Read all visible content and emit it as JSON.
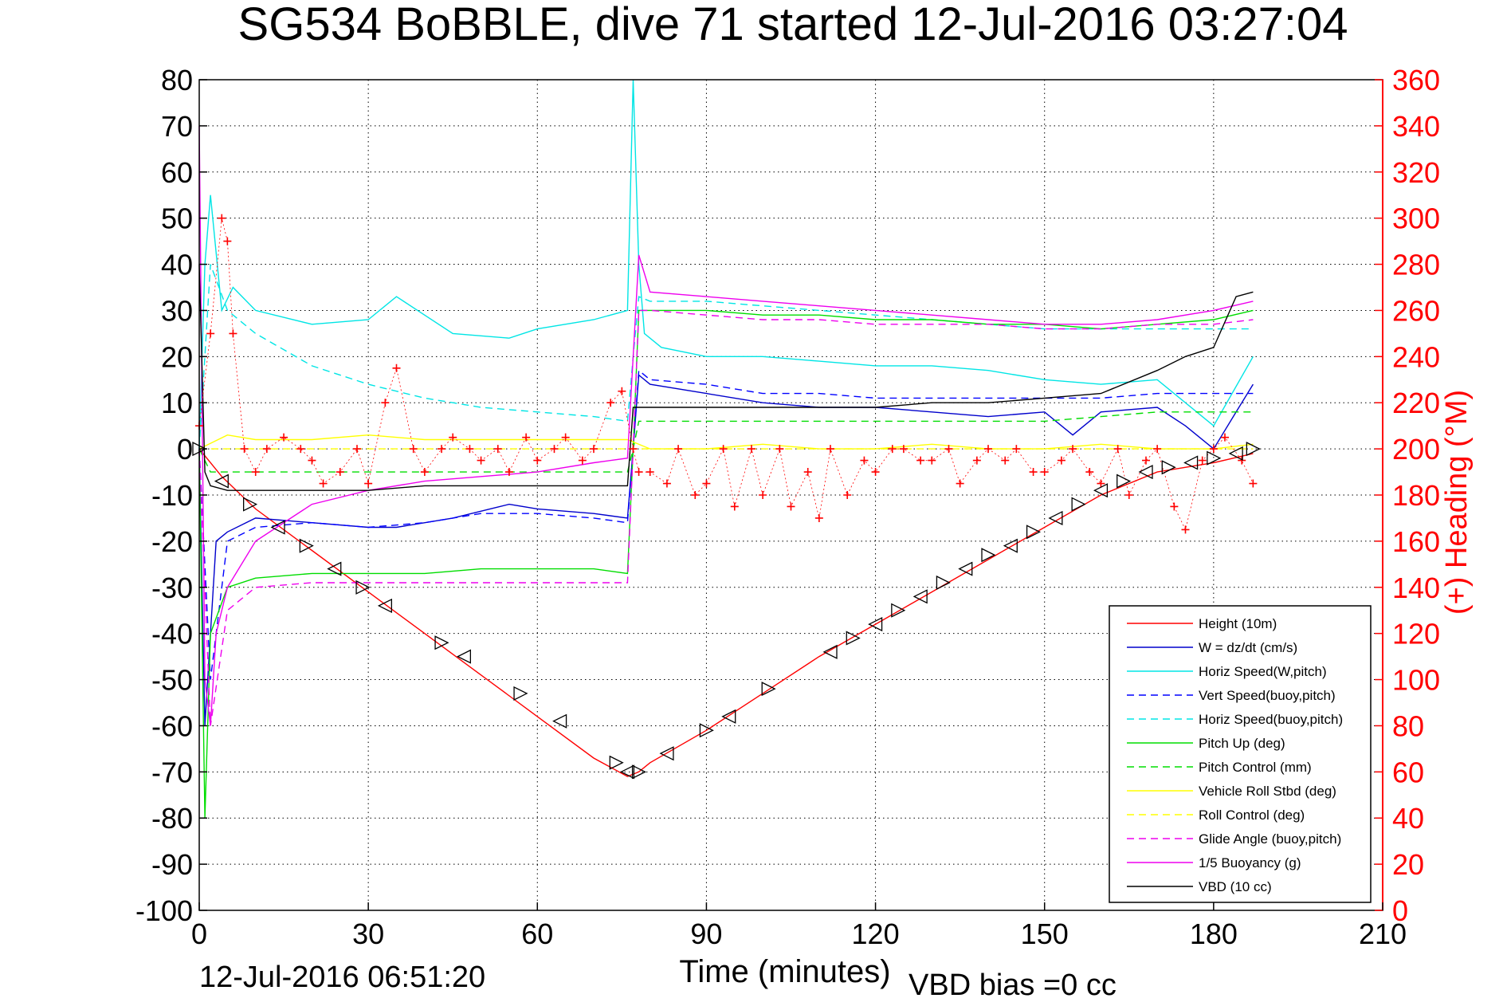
{
  "chart_data": {
    "type": "line",
    "title": "SG534 BoBBLE, dive 71 started 12-Jul-2016 03:27:04",
    "xlabel": "Time (minutes)",
    "ylabel": "",
    "y2label": "(+) Heading (°M)",
    "xlim": [
      0,
      210
    ],
    "ylim": [
      -100,
      80
    ],
    "y2lim": [
      0,
      360
    ],
    "xticks": [
      "0",
      "30",
      "60",
      "90",
      "120",
      "150",
      "180",
      "210"
    ],
    "yticks": [
      "80",
      "70",
      "60",
      "50",
      "40",
      "30",
      "20",
      "10",
      "0",
      "-10",
      "-20",
      "-30",
      "-40",
      "-50",
      "-60",
      "-70",
      "-80",
      "-90",
      "-100"
    ],
    "y2ticks": [
      "360",
      "340",
      "320",
      "300",
      "280",
      "260",
      "240",
      "220",
      "200",
      "180",
      "160",
      "140",
      "120",
      "100",
      "80",
      "60",
      "40",
      "20",
      "0"
    ],
    "grid": true,
    "legend_position": "bottom-right",
    "footer_date": "12-Jul-2016 06:51:20",
    "footer_bias": "VBD bias =0 cc",
    "colors": {
      "red": "#ff0000",
      "blue": "#0000cc",
      "cyan": "#00e5e5",
      "green": "#00dd00",
      "yellow": "#ffff00",
      "magenta": "#ee00ee",
      "black": "#000000",
      "axis_right": "#ff0000"
    },
    "series": [
      {
        "name": "Height (10m)",
        "color": "#ff0000",
        "dash": false,
        "x": [
          0,
          4,
          10,
          20,
          30,
          40,
          50,
          60,
          70,
          76,
          78,
          80,
          90,
          100,
          110,
          120,
          130,
          140,
          150,
          160,
          170,
          180,
          187
        ],
        "y": [
          0,
          -6,
          -13,
          -22,
          -31,
          -40,
          -49,
          -58,
          -67,
          -71,
          -70,
          -68,
          -61,
          -53,
          -45,
          -38,
          -31,
          -24,
          -17,
          -10,
          -5,
          -3,
          -1
        ]
      },
      {
        "name": "W = dz/dt (cm/s)",
        "color": "#0000cc",
        "dash": false,
        "x": [
          0,
          1,
          2,
          3,
          5,
          10,
          20,
          30,
          35,
          45,
          55,
          60,
          70,
          76,
          77,
          78,
          80,
          90,
          100,
          110,
          120,
          130,
          140,
          150,
          155,
          160,
          170,
          175,
          180,
          184,
          187
        ],
        "y": [
          0,
          -60,
          -40,
          -20,
          -18,
          -15,
          -16,
          -17,
          -17,
          -15,
          -12,
          -13,
          -14,
          -15,
          0,
          16,
          14,
          12,
          10,
          9,
          9,
          8,
          7,
          8,
          3,
          8,
          9,
          5,
          0,
          8,
          14
        ]
      },
      {
        "name": "Horiz Speed(W,pitch)",
        "color": "#00e5e5",
        "dash": false,
        "x": [
          0,
          1,
          2,
          4,
          6,
          10,
          20,
          30,
          35,
          45,
          55,
          60,
          70,
          76,
          77,
          78,
          79,
          82,
          90,
          100,
          110,
          120,
          130,
          140,
          150,
          160,
          170,
          180,
          187
        ],
        "y": [
          0,
          40,
          55,
          30,
          35,
          30,
          27,
          28,
          33,
          25,
          24,
          26,
          28,
          30,
          80,
          40,
          25,
          22,
          20,
          20,
          19,
          18,
          18,
          17,
          15,
          14,
          15,
          5,
          20
        ]
      },
      {
        "name": "Vert Speed(buoy,pitch)",
        "color": "#0000ff",
        "dash": true,
        "x": [
          0,
          2,
          5,
          10,
          20,
          30,
          40,
          50,
          60,
          70,
          76,
          77,
          78,
          80,
          90,
          100,
          110,
          120,
          130,
          140,
          150,
          160,
          170,
          180,
          187
        ],
        "y": [
          0,
          -50,
          -20,
          -17,
          -16,
          -17,
          -16,
          -14,
          -14,
          -15,
          -16,
          0,
          17,
          15,
          14,
          12,
          12,
          11,
          11,
          11,
          11,
          11,
          12,
          12,
          12
        ]
      },
      {
        "name": "Horiz Speed(buoy,pitch)",
        "color": "#00e5e5",
        "dash": true,
        "x": [
          0,
          2,
          5,
          10,
          20,
          30,
          40,
          50,
          60,
          70,
          76,
          77,
          78,
          80,
          90,
          100,
          110,
          120,
          130,
          140,
          150,
          160,
          170,
          180,
          187
        ],
        "y": [
          0,
          40,
          30,
          25,
          18,
          14,
          11,
          9,
          8,
          7,
          6,
          20,
          33,
          32,
          32,
          31,
          30,
          29,
          28,
          27,
          26,
          26,
          26,
          26,
          26
        ]
      },
      {
        "name": "Pitch Up (deg)",
        "color": "#00dd00",
        "dash": false,
        "x": [
          0,
          1,
          2,
          5,
          10,
          20,
          30,
          40,
          50,
          60,
          70,
          76,
          77,
          78,
          80,
          90,
          100,
          110,
          120,
          130,
          140,
          150,
          160,
          170,
          180,
          187
        ],
        "y": [
          0,
          -80,
          -40,
          -30,
          -28,
          -27,
          -27,
          -27,
          -26,
          -26,
          -26,
          -27,
          0,
          30,
          30,
          30,
          29,
          29,
          28,
          28,
          27,
          27,
          26,
          27,
          28,
          30
        ]
      },
      {
        "name": "Pitch Control (mm)",
        "color": "#00dd00",
        "dash": true,
        "x": [
          0,
          2,
          5,
          10,
          20,
          30,
          40,
          50,
          60,
          70,
          76,
          77,
          78,
          80,
          90,
          100,
          110,
          120,
          130,
          140,
          150,
          160,
          170,
          180,
          187
        ],
        "y": [
          0,
          -5,
          -5,
          -5,
          -5,
          -5,
          -5,
          -5,
          -5,
          -5,
          -5,
          0,
          6,
          6,
          6,
          6,
          6,
          6,
          6,
          6,
          6,
          7,
          8,
          8,
          8
        ]
      },
      {
        "name": "Vehicle Roll Stbd (deg)",
        "color": "#ffff00",
        "dash": false,
        "x": [
          0,
          5,
          10,
          20,
          30,
          40,
          50,
          60,
          70,
          76,
          80,
          90,
          100,
          110,
          120,
          130,
          140,
          150,
          160,
          170,
          180,
          187
        ],
        "y": [
          0,
          3,
          2,
          2,
          3,
          2,
          2,
          2,
          2,
          2,
          0,
          0,
          1,
          0,
          0,
          1,
          0,
          0,
          1,
          0,
          0,
          1
        ]
      },
      {
        "name": "Roll Control (deg)",
        "color": "#ffff00",
        "dash": true,
        "x": [
          0,
          5,
          10,
          20,
          30,
          40,
          50,
          60,
          70,
          76,
          80,
          90,
          100,
          110,
          120,
          130,
          140,
          150,
          160,
          170,
          180,
          187
        ],
        "y": [
          0,
          0,
          0,
          0,
          0,
          0,
          0,
          0,
          0,
          0,
          0,
          0,
          0,
          0,
          0,
          0,
          0,
          0,
          0,
          0,
          0,
          0
        ]
      },
      {
        "name": "Glide Angle (buoy,pitch)",
        "color": "#ee00ee",
        "dash": true,
        "x": [
          0,
          2,
          5,
          10,
          20,
          30,
          40,
          50,
          60,
          70,
          76,
          77,
          78,
          80,
          90,
          100,
          110,
          120,
          130,
          140,
          150,
          160,
          170,
          180,
          187
        ],
        "y": [
          0,
          -60,
          -35,
          -30,
          -29,
          -29,
          -29,
          -29,
          -29,
          -29,
          -29,
          0,
          30,
          30,
          29,
          28,
          28,
          27,
          27,
          27,
          26,
          26,
          27,
          27,
          28
        ]
      },
      {
        "name": "1/5 Buoyancy (g)",
        "color": "#ee00ee",
        "dash": false,
        "x": [
          0,
          1,
          2,
          3,
          5,
          10,
          20,
          30,
          40,
          50,
          60,
          70,
          76,
          77,
          78,
          80,
          90,
          100,
          110,
          120,
          130,
          140,
          150,
          160,
          170,
          180,
          187
        ],
        "y": [
          70,
          -50,
          -60,
          -40,
          -30,
          -20,
          -12,
          -9,
          -7,
          -6,
          -5,
          -3,
          -2,
          20,
          42,
          34,
          33,
          32,
          31,
          30,
          29,
          28,
          27,
          27,
          28,
          30,
          32
        ]
      },
      {
        "name": "VBD (10 cc)",
        "color": "#000000",
        "dash": false,
        "x": [
          0,
          1,
          2,
          5,
          10,
          20,
          30,
          40,
          50,
          60,
          70,
          76,
          77,
          78,
          80,
          90,
          100,
          110,
          120,
          130,
          140,
          150,
          160,
          170,
          175,
          180,
          184,
          187
        ],
        "y": [
          40,
          -5,
          -8,
          -9,
          -9,
          -9,
          -9,
          -8,
          -8,
          -8,
          -8,
          -8,
          9,
          9,
          9,
          9,
          9,
          9,
          9,
          10,
          10,
          11,
          12,
          17,
          20,
          22,
          33,
          34
        ]
      },
      {
        "name": "",
        "color": "#ff0000",
        "dash": false,
        "marker": "+",
        "axis": "right",
        "x": [
          0,
          2,
          4,
          5,
          6,
          8,
          10,
          12,
          15,
          18,
          20,
          22,
          25,
          28,
          30,
          33,
          35,
          38,
          40,
          43,
          45,
          48,
          50,
          53,
          55,
          58,
          60,
          63,
          65,
          68,
          70,
          73,
          75,
          77,
          78,
          80,
          83,
          85,
          88,
          90,
          93,
          95,
          98,
          100,
          103,
          105,
          108,
          110,
          112,
          115,
          118,
          120,
          123,
          125,
          128,
          130,
          133,
          135,
          138,
          140,
          143,
          145,
          148,
          150,
          153,
          155,
          158,
          160,
          163,
          165,
          168,
          170,
          173,
          175,
          178,
          180,
          182,
          185,
          187
        ],
        "y": [
          210,
          250,
          300,
          290,
          250,
          200,
          190,
          200,
          205,
          200,
          195,
          185,
          190,
          200,
          185,
          220,
          235,
          200,
          190,
          200,
          205,
          200,
          195,
          200,
          190,
          205,
          195,
          200,
          205,
          195,
          200,
          220,
          225,
          200,
          190,
          190,
          185,
          200,
          180,
          185,
          200,
          175,
          200,
          180,
          200,
          175,
          190,
          170,
          200,
          180,
          195,
          190,
          200,
          200,
          195,
          195,
          200,
          185,
          195,
          200,
          195,
          200,
          190,
          190,
          195,
          200,
          190,
          185,
          200,
          180,
          195,
          200,
          175,
          165,
          195,
          200,
          205,
          195,
          185
        ]
      },
      {
        "name": "",
        "color": "#000000",
        "dash": false,
        "marker": "triangle",
        "x": [
          0,
          4,
          9,
          14,
          19,
          24,
          29,
          33,
          43,
          47,
          57,
          64,
          74,
          76,
          78,
          83,
          90,
          94,
          101,
          112,
          116,
          120,
          124,
          128,
          132,
          136,
          140,
          144,
          148,
          152,
          156,
          160,
          164,
          168,
          172,
          176,
          180,
          184,
          187
        ],
        "y": [
          0,
          -7,
          -12,
          -17,
          -21,
          -26,
          -30,
          -34,
          -42,
          -45,
          -53,
          -59,
          -68,
          -70,
          -70,
          -66,
          -61,
          -58,
          -52,
          -44,
          -41,
          -38,
          -35,
          -32,
          -29,
          -26,
          -23,
          -21,
          -18,
          -15,
          -12,
          -9,
          -7,
          -5,
          -4,
          -3,
          -2,
          -1,
          0
        ]
      }
    ]
  }
}
